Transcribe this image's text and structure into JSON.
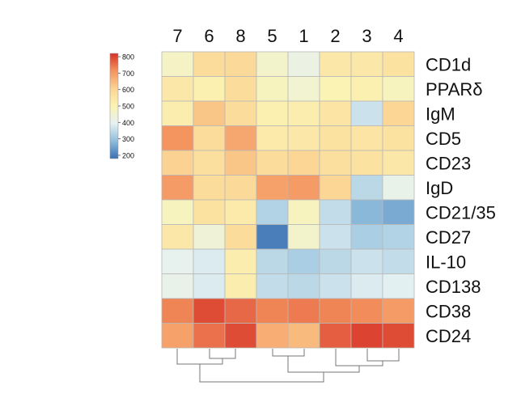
{
  "chart_data": {
    "type": "heatmap",
    "title": "",
    "xlabel": "",
    "ylabel": "",
    "columns": [
      "7",
      "6",
      "8",
      "5",
      "1",
      "2",
      "3",
      "4"
    ],
    "rows": [
      "CD1d",
      "PPARδ",
      "IgM",
      "CD5",
      "CD23",
      "IgD",
      "CD21/35",
      "CD27",
      "IL-10",
      "CD138",
      "CD38",
      "CD24"
    ],
    "values": [
      [
        470,
        580,
        590,
        460,
        420,
        540,
        540,
        560
      ],
      [
        540,
        510,
        580,
        480,
        450,
        500,
        510,
        480
      ],
      [
        520,
        630,
        580,
        510,
        520,
        550,
        360,
        600
      ],
      [
        710,
        580,
        680,
        530,
        540,
        560,
        550,
        560
      ],
      [
        610,
        570,
        630,
        580,
        600,
        570,
        560,
        540
      ],
      [
        700,
        580,
        590,
        690,
        700,
        600,
        340,
        410
      ],
      [
        480,
        560,
        530,
        330,
        480,
        350,
        280,
        260
      ],
      [
        540,
        440,
        580,
        200,
        460,
        360,
        320,
        330
      ],
      [
        400,
        380,
        520,
        340,
        320,
        340,
        360,
        350
      ],
      [
        410,
        380,
        520,
        350,
        340,
        360,
        380,
        390
      ],
      [
        730,
        790,
        760,
        730,
        740,
        730,
        720,
        700
      ],
      [
        690,
        750,
        790,
        670,
        650,
        770,
        800,
        790
      ]
    ],
    "colorbar": {
      "ticks": [
        800,
        700,
        600,
        500,
        400,
        300,
        200
      ],
      "min": 180,
      "max": 820,
      "colors": [
        "#3a6fb3",
        "#8fbddb",
        "#e6f2f3",
        "#fbf3b3",
        "#fbd493",
        "#f4935e",
        "#d73027"
      ]
    },
    "dendrogram": "present above columns (hierarchical clustering)"
  }
}
